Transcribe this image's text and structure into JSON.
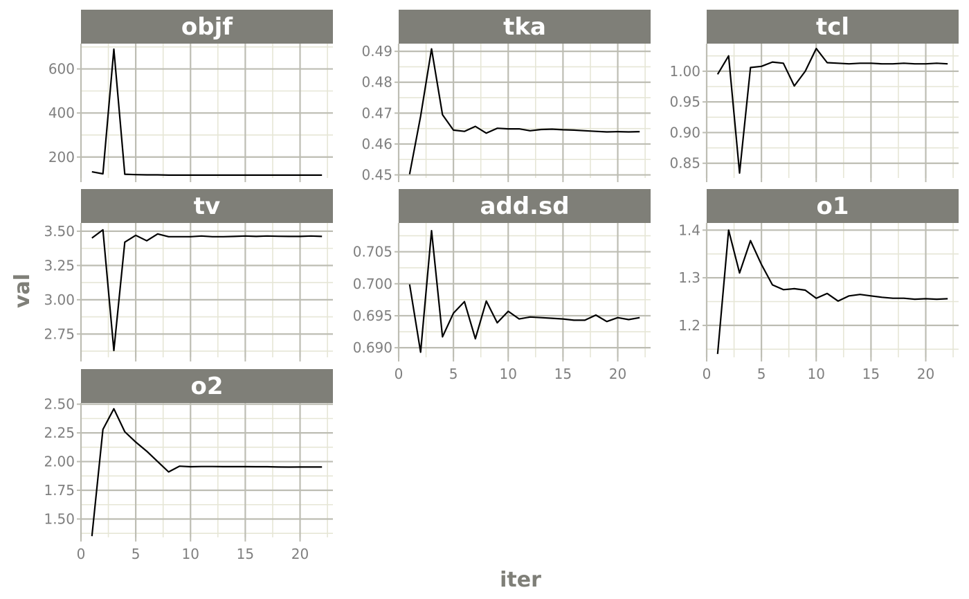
{
  "chart_data": {
    "type": "line",
    "layout": "faceted",
    "xlabel": "iter",
    "ylabel": "val",
    "x": [
      1,
      2,
      3,
      4,
      5,
      6,
      7,
      8,
      9,
      10,
      11,
      12,
      13,
      14,
      15,
      16,
      17,
      18,
      19,
      20,
      21,
      22
    ],
    "x_ticks": [
      0,
      5,
      10,
      15,
      20
    ],
    "xlim": [
      0,
      23
    ],
    "series_color": "#000000",
    "strip_color": "#7f7f78",
    "facets": [
      {
        "name": "objf",
        "ylim": [
          105,
          715
        ],
        "y_ticks": [
          200,
          400,
          600
        ],
        "y_tick_labels": [
          "200",
          "400",
          "600"
        ],
        "values": [
          133,
          124,
          690,
          122,
          120,
          119,
          119,
          118,
          118,
          118,
          118,
          118,
          118,
          118,
          118,
          118,
          118,
          118,
          118,
          118,
          118,
          118
        ]
      },
      {
        "name": "tka",
        "ylim": [
          0.449,
          0.4925
        ],
        "y_ticks": [
          0.45,
          0.46,
          0.47,
          0.48,
          0.49
        ],
        "y_tick_labels": [
          "0.45",
          "0.46",
          "0.47",
          "0.48",
          "0.49"
        ],
        "values": [
          0.4502,
          0.469,
          0.4908,
          0.4695,
          0.4645,
          0.4641,
          0.4657,
          0.4635,
          0.4651,
          0.4649,
          0.4649,
          0.4643,
          0.4647,
          0.4648,
          0.4646,
          0.4645,
          0.4643,
          0.4641,
          0.4639,
          0.464,
          0.4639,
          0.464
        ]
      },
      {
        "name": "tcl",
        "ylim": [
          0.826,
          1.045
        ],
        "y_ticks": [
          0.85,
          0.9,
          0.95,
          1.0
        ],
        "y_tick_labels": [
          "0.85",
          "0.90",
          "0.95",
          "1.00"
        ],
        "values": [
          0.995,
          1.025,
          0.834,
          1.006,
          1.008,
          1.015,
          1.013,
          0.976,
          1.0,
          1.037,
          1.014,
          1.013,
          1.012,
          1.013,
          1.013,
          1.012,
          1.012,
          1.013,
          1.012,
          1.012,
          1.013,
          1.012
        ]
      },
      {
        "name": "tv",
        "ylim": [
          2.58,
          3.56
        ],
        "y_ticks": [
          2.75,
          3.0,
          3.25,
          3.5
        ],
        "y_tick_labels": [
          "2.75",
          "3.00",
          "3.25",
          "3.50"
        ],
        "values": [
          3.45,
          3.51,
          2.63,
          3.42,
          3.47,
          3.43,
          3.48,
          3.46,
          3.46,
          3.46,
          3.465,
          3.46,
          3.46,
          3.462,
          3.465,
          3.462,
          3.465,
          3.463,
          3.462,
          3.462,
          3.465,
          3.462
        ]
      },
      {
        "name": "add.sd",
        "ylim": [
          0.6885,
          0.7095
        ],
        "y_ticks": [
          0.69,
          0.695,
          0.7,
          0.705
        ],
        "y_tick_labels": [
          "0.690",
          "0.695",
          "0.700",
          "0.705"
        ],
        "values": [
          0.6999,
          0.6893,
          0.7083,
          0.6917,
          0.6954,
          0.6972,
          0.6914,
          0.6973,
          0.6939,
          0.6957,
          0.6945,
          0.6948,
          0.6947,
          0.6946,
          0.6945,
          0.6943,
          0.6943,
          0.6951,
          0.6941,
          0.6947,
          0.6944,
          0.6947
        ]
      },
      {
        "name": "o1",
        "ylim": [
          1.133,
          1.415
        ],
        "y_ticks": [
          1.2,
          1.3,
          1.4
        ],
        "y_tick_labels": [
          "1.2",
          "1.3",
          "1.4"
        ],
        "values": [
          1.14,
          1.4,
          1.31,
          1.378,
          1.328,
          1.285,
          1.275,
          1.277,
          1.274,
          1.257,
          1.267,
          1.251,
          1.262,
          1.265,
          1.262,
          1.259,
          1.257,
          1.257,
          1.255,
          1.256,
          1.255,
          1.256
        ]
      },
      {
        "name": "o2",
        "ylim": [
          1.34,
          2.51
        ],
        "y_ticks": [
          1.5,
          1.75,
          2.0,
          2.25,
          2.5
        ],
        "y_tick_labels": [
          "1.50",
          "1.75",
          "2.00",
          "2.25",
          "2.50"
        ],
        "values": [
          1.35,
          2.28,
          2.46,
          2.26,
          2.17,
          2.09,
          2.0,
          1.91,
          1.96,
          1.955,
          1.957,
          1.957,
          1.956,
          1.956,
          1.956,
          1.955,
          1.955,
          1.953,
          1.952,
          1.953,
          1.953,
          1.953
        ]
      }
    ]
  }
}
